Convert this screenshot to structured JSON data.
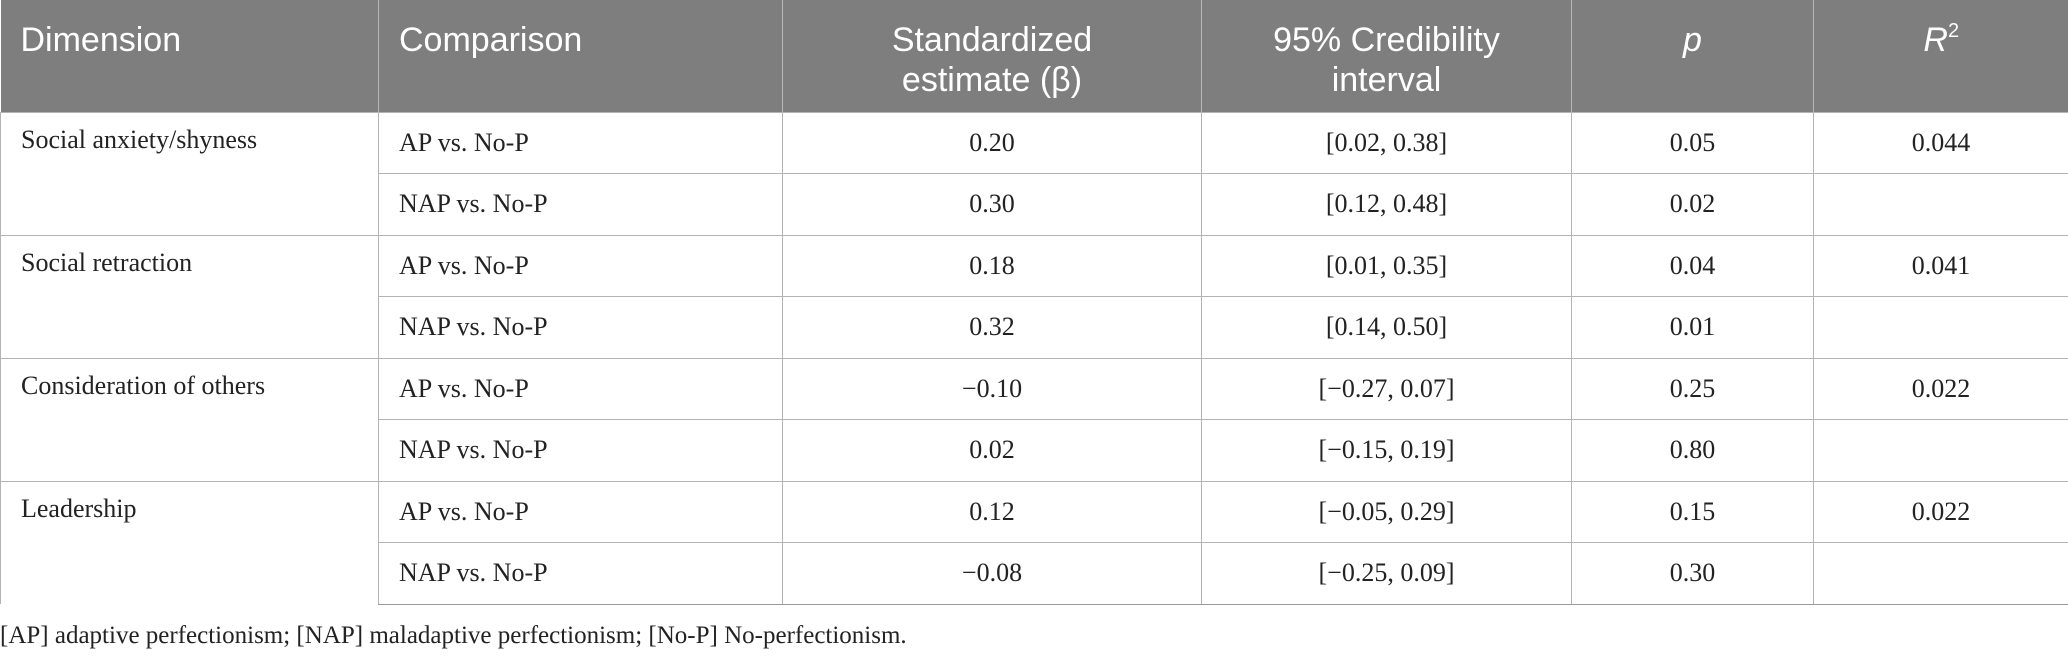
{
  "headers": {
    "dimension": "Dimension",
    "comparison": "Comparison",
    "estimate_line1": "Standardized",
    "estimate_line2": "estimate (β)",
    "interval_line1": "95% Credibility",
    "interval_line2": "interval",
    "p": "p",
    "r2_letter": "R",
    "r2_sup": "2"
  },
  "groups": [
    {
      "dimension": "Social anxiety/shyness",
      "r2": "0.044",
      "rows": [
        {
          "comparison": "AP vs. No-P",
          "beta": "0.20",
          "ci": "[0.02, 0.38]",
          "p": "0.05"
        },
        {
          "comparison": "NAP vs. No-P",
          "beta": "0.30",
          "ci": "[0.12, 0.48]",
          "p": "0.02"
        }
      ]
    },
    {
      "dimension": "Social retraction",
      "r2": "0.041",
      "rows": [
        {
          "comparison": "AP vs. No-P",
          "beta": "0.18",
          "ci": "[0.01, 0.35]",
          "p": "0.04"
        },
        {
          "comparison": "NAP vs. No-P",
          "beta": "0.32",
          "ci": "[0.14, 0.50]",
          "p": "0.01"
        }
      ]
    },
    {
      "dimension": "Consideration of others",
      "r2": "0.022",
      "rows": [
        {
          "comparison": "AP vs. No-P",
          "beta": "−0.10",
          "ci": "[−0.27, 0.07]",
          "p": "0.25"
        },
        {
          "comparison": "NAP vs. No-P",
          "beta": "0.02",
          "ci": "[−0.15, 0.19]",
          "p": "0.80"
        }
      ]
    },
    {
      "dimension": "Leadership",
      "r2": "0.022",
      "rows": [
        {
          "comparison": "AP vs. No-P",
          "beta": "0.12",
          "ci": "[−0.05, 0.29]",
          "p": "0.15"
        },
        {
          "comparison": "NAP vs. No-P",
          "beta": "−0.08",
          "ci": "[−0.25, 0.09]",
          "p": "0.30"
        }
      ]
    }
  ],
  "footnote": "[AP] adaptive perfectionism; [NAP] maladaptive perfectionism; [No-P] No-perfectionism."
}
